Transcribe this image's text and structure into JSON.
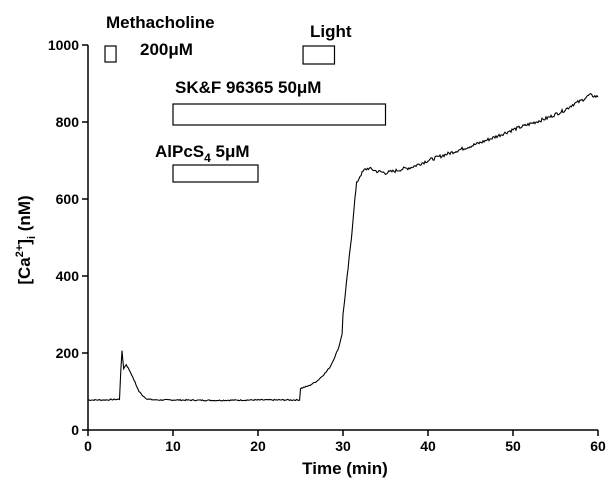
{
  "chart_data": {
    "type": "line",
    "xlabel": "Time (min)",
    "ylabel_main": "[Ca",
    "ylabel_sup": "2+",
    "ylabel_close": "]",
    "ylabel_sub": "i",
    "ylabel_unit": " (nM)",
    "xlim": [
      0,
      60
    ],
    "ylim": [
      0,
      1000
    ],
    "x_ticks": [
      0,
      10,
      20,
      30,
      40,
      50,
      60
    ],
    "y_ticks": [
      0,
      200,
      400,
      600,
      800,
      1000
    ],
    "x_tick_labels": [
      "0",
      "10",
      "20",
      "30",
      "40",
      "50",
      "60"
    ],
    "y_tick_labels": [
      "0",
      "200",
      "400",
      "600",
      "800",
      "1000"
    ],
    "grid": false,
    "series": [
      {
        "x": [
          0,
          2,
          3.7,
          3.85,
          4.0,
          4.2,
          4.5,
          5.0,
          5.5,
          6.0,
          6.5,
          7.0,
          8,
          10,
          15,
          20,
          24.9,
          25.0,
          26,
          27,
          28,
          28.5,
          29,
          29.5,
          29.9,
          30.0,
          30.3,
          30.6,
          31.0,
          31.3,
          31.6,
          32.0,
          32.5,
          33,
          34,
          35,
          36,
          37,
          38,
          40,
          42,
          44,
          46,
          48,
          50,
          52,
          54,
          56,
          57,
          58,
          59,
          60
        ],
        "y": [
          78,
          78,
          80,
          150,
          205,
          160,
          170,
          150,
          125,
          100,
          88,
          80,
          78,
          78,
          77,
          78,
          78,
          108,
          115,
          128,
          150,
          165,
          188,
          215,
          250,
          300,
          360,
          420,
          500,
          580,
          640,
          660,
          675,
          680,
          672,
          668,
          672,
          678,
          682,
          700,
          715,
          730,
          745,
          762,
          780,
          795,
          810,
          830,
          845,
          855,
          870,
          865
        ]
      }
    ],
    "annotations": [
      {
        "label": "Methacholine",
        "bar_start": 2.0,
        "bar_end": 3.3
      },
      {
        "label": "200μM"
      },
      {
        "label": "Light",
        "bar_start": 25.3,
        "bar_end": 29.0
      },
      {
        "label": "SK&F 96365 50μM",
        "bar_start": 10.0,
        "bar_end": 35.0
      },
      {
        "label_main": "AlPcS",
        "label_sub": "4",
        "label_rest": " 5μM",
        "bar_start": 10.0,
        "bar_end": 20.0
      }
    ]
  }
}
